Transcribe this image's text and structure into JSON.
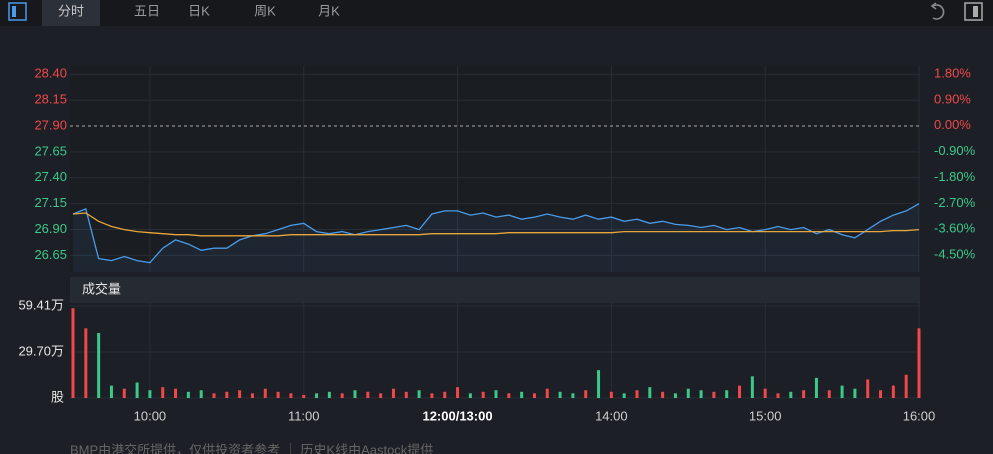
{
  "tabs": [
    "分时",
    "五日",
    "日K",
    "周K",
    "月K"
  ],
  "volume_panel_title": "成交量",
  "footer": "BMP由港交所提供，仅供投资者参考 ｜ 历史K线由Aastock提供",
  "chart_data": [
    {
      "type": "line",
      "x": [
        0,
        5,
        10,
        15,
        20,
        25,
        30,
        35,
        40,
        45,
        50,
        55,
        60,
        65,
        70,
        75,
        80,
        85,
        90,
        95,
        100,
        105,
        110,
        115,
        120,
        125,
        130,
        135,
        140,
        145,
        150,
        155,
        160,
        165,
        170,
        175,
        180,
        185,
        190,
        195,
        200,
        205,
        210,
        215,
        220,
        225,
        230,
        235,
        240,
        245,
        250,
        255,
        260,
        265,
        270,
        275,
        280,
        285,
        290,
        295,
        300,
        305,
        310,
        315,
        320,
        325,
        330
      ],
      "xlim": [
        0,
        330
      ],
      "ylim": [
        26.49,
        28.48
      ],
      "yticks": [
        {
          "value": 28.4,
          "label": "28.40"
        },
        28.15,
        {
          "value": 27.9,
          "label": "27.90"
        },
        27.65,
        {
          "value": 27.4,
          "label": "27.40"
        },
        27.15,
        {
          "value": 26.9,
          "label": "26.90"
        },
        26.65
      ],
      "y2lim": [
        -5.09,
        2.08
      ],
      "y2ticks": [
        {
          "value": 1.8,
          "label": "1.80%"
        },
        {
          "value": 0.9,
          "label": "0.90%"
        },
        {
          "value": 0,
          "label": "0.00%"
        },
        {
          "value": -0.9,
          "label": "-0.90%"
        },
        {
          "value": -1.8,
          "label": "-1.80%"
        },
        {
          "value": -2.7,
          "label": "-2.70%"
        },
        {
          "value": -3.6,
          "label": "-3.60%"
        },
        {
          "value": -4.5,
          "label": "-4.50%"
        }
      ],
      "prev_close": 27.9,
      "grid": true,
      "series": [
        {
          "color": "#4a9be8",
          "values": [
            27.05,
            27.1,
            26.62,
            26.6,
            26.64,
            26.6,
            26.58,
            26.72,
            26.8,
            26.76,
            26.7,
            26.72,
            26.72,
            26.8,
            26.84,
            26.86,
            26.9,
            26.94,
            26.96,
            26.88,
            26.86,
            26.88,
            26.85,
            26.88,
            26.9,
            26.92,
            26.94,
            26.9,
            27.05,
            27.08,
            27.08,
            27.04,
            27.06,
            27.02,
            27.04,
            27.0,
            27.02,
            27.05,
            27.02,
            27.0,
            27.04,
            27.0,
            27.02,
            26.98,
            27.0,
            26.96,
            26.98,
            26.95,
            26.94,
            26.92,
            26.94,
            26.9,
            26.92,
            26.88,
            26.9,
            26.93,
            26.9,
            26.92,
            26.86,
            26.9,
            26.85,
            26.82,
            26.9,
            26.98,
            27.04,
            27.08,
            27.15
          ]
        },
        {
          "color": "#e8a73a",
          "values": [
            27.05,
            27.06,
            26.98,
            26.93,
            26.9,
            26.88,
            26.87,
            26.86,
            26.85,
            26.85,
            26.84,
            26.84,
            26.84,
            26.84,
            26.84,
            26.84,
            26.84,
            26.85,
            26.85,
            26.85,
            26.85,
            26.85,
            26.85,
            26.85,
            26.85,
            26.85,
            26.85,
            26.85,
            26.86,
            26.86,
            26.86,
            26.86,
            26.86,
            26.86,
            26.87,
            26.87,
            26.87,
            26.87,
            26.87,
            26.87,
            26.87,
            26.87,
            26.87,
            26.88,
            26.88,
            26.88,
            26.88,
            26.88,
            26.88,
            26.88,
            26.88,
            26.88,
            26.88,
            26.88,
            26.88,
            26.88,
            26.88,
            26.88,
            26.88,
            26.88,
            26.88,
            26.88,
            26.88,
            26.88,
            26.89,
            26.89,
            26.9
          ]
        }
      ]
    },
    {
      "type": "bar",
      "x": [
        0,
        5,
        10,
        15,
        20,
        25,
        30,
        35,
        40,
        45,
        50,
        55,
        60,
        65,
        70,
        75,
        80,
        85,
        90,
        95,
        100,
        105,
        110,
        115,
        120,
        125,
        130,
        135,
        140,
        145,
        150,
        155,
        160,
        165,
        170,
        175,
        180,
        185,
        190,
        195,
        200,
        205,
        210,
        215,
        220,
        225,
        230,
        235,
        240,
        245,
        250,
        255,
        260,
        265,
        270,
        275,
        280,
        285,
        290,
        295,
        300,
        305,
        310,
        315,
        320,
        325,
        330
      ],
      "xlim": [
        0,
        330
      ],
      "xticks": [
        {
          "value": 30,
          "label": "10:00"
        },
        {
          "value": 90,
          "label": "11:00"
        },
        {
          "value": 150,
          "label": "12:00/13:00"
        },
        {
          "value": 210,
          "label": "14:00"
        },
        {
          "value": 270,
          "label": "15:00"
        },
        {
          "value": 330,
          "label": "16:00"
        }
      ],
      "ylim": [
        0,
        62
      ],
      "yticks": [
        {
          "value": 59.41,
          "label": "59.41万"
        },
        {
          "value": 29.7,
          "label": "29.70万"
        },
        {
          "value": 0,
          "label": "股"
        }
      ],
      "values": [
        58,
        45,
        42,
        8,
        6,
        10,
        5,
        7,
        6,
        4,
        5,
        3,
        4,
        5,
        3,
        6,
        4,
        3,
        2,
        3,
        4,
        3,
        5,
        4,
        3,
        6,
        4,
        5,
        3,
        4,
        7,
        3,
        4,
        5,
        3,
        4,
        3,
        6,
        4,
        3,
        5,
        18,
        4,
        3,
        5,
        7,
        4,
        3,
        6,
        5,
        4,
        5,
        8,
        14,
        6,
        3,
        4,
        5,
        13,
        5,
        8,
        6,
        12,
        5,
        8,
        15,
        45
      ]
    }
  ]
}
